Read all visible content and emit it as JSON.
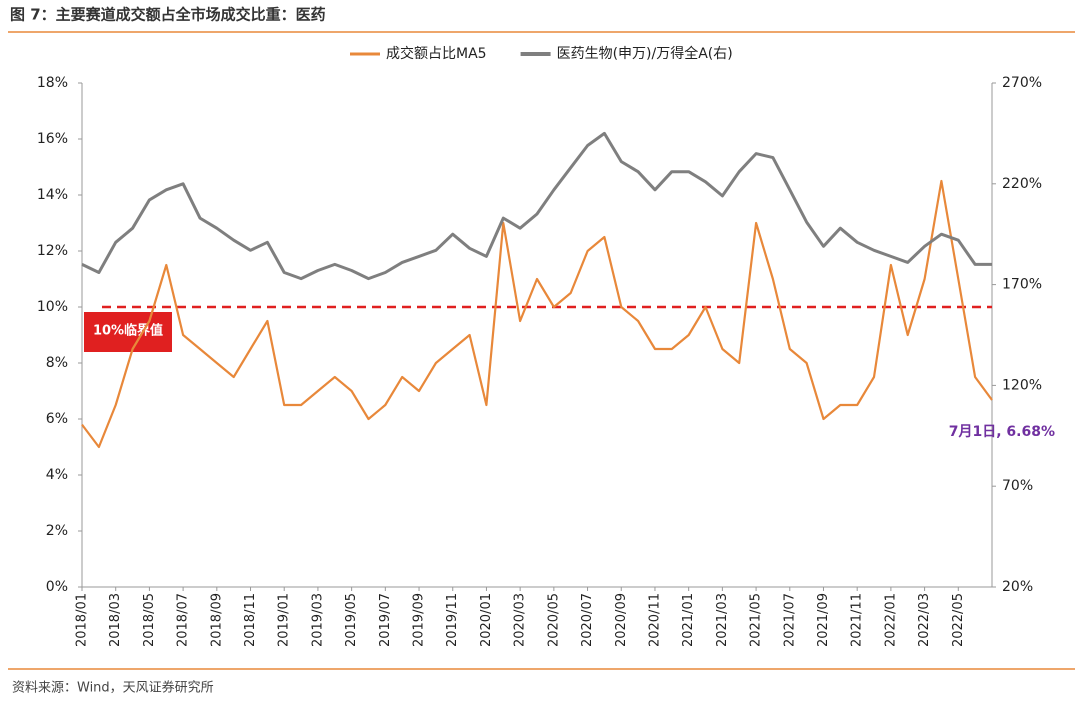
{
  "chart_data": {
    "type": "line",
    "title": "图 7：主要赛道成交额占全市场成交比重：医药",
    "source": "资料来源：Wind，天风证券研究所",
    "categories": [
      "2018/01",
      null,
      "2018/03",
      null,
      "2018/05",
      null,
      "2018/07",
      null,
      "2018/09",
      null,
      "2018/11",
      null,
      "2019/01",
      null,
      "2019/03",
      null,
      "2019/05",
      null,
      "2019/07",
      null,
      "2019/09",
      null,
      "2019/11",
      null,
      "2020/01",
      null,
      "2020/03",
      null,
      "2020/05",
      null,
      "2020/07",
      null,
      "2020/09",
      null,
      "2020/11",
      null,
      "2021/01",
      null,
      "2021/03",
      null,
      "2021/05",
      null,
      "2021/07",
      null,
      "2021/09",
      null,
      "2021/11",
      null,
      "2022/01",
      null,
      "2022/03",
      null,
      "2022/05",
      null,
      null
    ],
    "series": [
      {
        "name": "成交额占比MA5",
        "color": "#e8883a",
        "values": [
          5.8,
          5.0,
          6.5,
          8.5,
          9.5,
          11.5,
          9.0,
          8.5,
          8.0,
          7.5,
          8.5,
          9.5,
          6.5,
          6.5,
          7.0,
          7.5,
          7.0,
          6.0,
          6.5,
          7.5,
          7.0,
          8.0,
          8.5,
          9.0,
          6.5,
          13.0,
          9.5,
          11.0,
          10.0,
          10.5,
          12.0,
          12.5,
          10.0,
          9.5,
          8.5,
          8.5,
          9.0,
          10.0,
          8.5,
          8.0,
          13.0,
          11.0,
          8.5,
          8.0,
          6.0,
          6.5,
          6.5,
          7.5,
          11.5,
          9.0,
          11.0,
          14.5,
          11.0,
          7.5,
          6.68
        ]
      },
      {
        "name": "医药生物(申万)/万得全A(右)",
        "color": "#7f7f7f",
        "axis": "y2",
        "values": [
          180,
          176,
          191,
          198,
          212,
          217,
          220,
          203,
          198,
          192,
          187,
          191,
          176,
          173,
          177,
          180,
          177,
          173,
          176,
          181,
          184,
          187,
          195,
          188,
          184,
          203,
          198,
          205,
          217,
          228,
          239,
          245,
          231,
          226,
          217,
          226,
          226,
          221,
          214,
          226,
          235,
          233,
          217,
          201,
          189,
          198,
          191,
          187,
          184,
          181,
          189,
          195,
          192,
          180,
          180
        ]
      }
    ],
    "ylim": [
      0,
      18
    ],
    "yticks": [
      {
        "value": 0,
        "label": "0%"
      },
      {
        "value": 2,
        "label": "2%"
      },
      {
        "value": 4,
        "label": "4%"
      },
      {
        "value": 6,
        "label": "6%"
      },
      {
        "value": 8,
        "label": "8%"
      },
      {
        "value": 10,
        "label": "10%"
      },
      {
        "value": 12,
        "label": "12%"
      },
      {
        "value": 14,
        "label": "14%"
      },
      {
        "value": 16,
        "label": "16%"
      },
      {
        "value": 18,
        "label": "18%"
      }
    ],
    "y2lim": [
      20,
      270
    ],
    "y2ticks": [
      {
        "value": 20,
        "label": "20%"
      },
      {
        "value": 70,
        "label": "70%"
      },
      {
        "value": 120,
        "label": "120%"
      },
      {
        "value": 170,
        "label": "170%"
      },
      {
        "value": 220,
        "label": "220%"
      },
      {
        "value": 270,
        "label": "270%"
      }
    ],
    "threshold": {
      "value": 10,
      "label": "10%临界值",
      "color": "#e02020"
    },
    "annotation": {
      "text": "7月1日, 6.68%",
      "color": "#7030a0"
    },
    "legend": "top"
  }
}
